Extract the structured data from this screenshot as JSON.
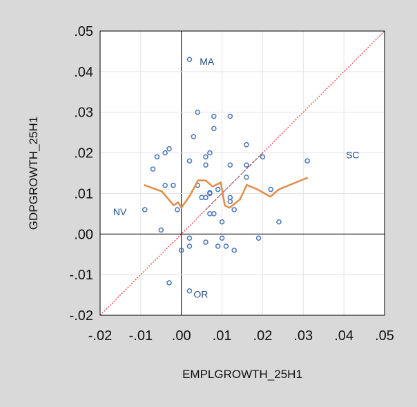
{
  "chart_data": {
    "type": "scatter",
    "title": "",
    "xlabel": "EMPLGROWTH_25H1",
    "ylabel": "GDPGROWTH_25H1",
    "xlim": [
      -0.02,
      0.05
    ],
    "ylim": [
      -0.02,
      0.05
    ],
    "xticks": [
      -0.02,
      -0.01,
      0.0,
      0.01,
      0.02,
      0.03,
      0.04,
      0.05
    ],
    "yticks": [
      -0.02,
      -0.01,
      0.0,
      0.01,
      0.02,
      0.03,
      0.04,
      0.05
    ],
    "xtick_labels": [
      "-.02",
      "-.01",
      ".00",
      ".01",
      ".02",
      ".03",
      ".04",
      ".05"
    ],
    "ytick_labels": [
      "-.02",
      "-.01",
      ".00",
      ".01",
      ".02",
      ".03",
      ".04",
      ".05"
    ],
    "grid": true,
    "colors": {
      "points": "#4f7ac0",
      "fit": "#e0904a",
      "diagonal": "#ff0000",
      "labels": "#1f4e8c"
    },
    "points": [
      [
        0.002,
        0.043
      ],
      [
        0.004,
        0.03
      ],
      [
        0.008,
        0.029
      ],
      [
        0.012,
        0.029
      ],
      [
        0.008,
        0.026
      ],
      [
        0.003,
        0.024
      ],
      [
        0.016,
        0.022
      ],
      [
        -0.003,
        0.021
      ],
      [
        -0.004,
        0.02
      ],
      [
        -0.006,
        0.019
      ],
      [
        0.007,
        0.02
      ],
      [
        0.006,
        0.019
      ],
      [
        0.002,
        0.018
      ],
      [
        0.02,
        0.019
      ],
      [
        0.031,
        0.018
      ],
      [
        -0.007,
        0.016
      ],
      [
        0.006,
        0.017
      ],
      [
        0.012,
        0.017
      ],
      [
        0.016,
        0.017
      ],
      [
        0.016,
        0.014
      ],
      [
        -0.004,
        0.012
      ],
      [
        -0.002,
        0.012
      ],
      [
        0.004,
        0.012
      ],
      [
        0.009,
        0.011
      ],
      [
        0.022,
        0.011
      ],
      [
        0.007,
        0.01
      ],
      [
        0.007,
        0.0102
      ],
      [
        0.012,
        0.009
      ],
      [
        0.005,
        0.009
      ],
      [
        0.006,
        0.009
      ],
      [
        0.012,
        0.008
      ],
      [
        -0.001,
        0.006
      ],
      [
        0.013,
        0.006
      ],
      [
        -0.009,
        0.006
      ],
      [
        0.007,
        0.005
      ],
      [
        0.008,
        0.005
      ],
      [
        0.01,
        0.003
      ],
      [
        0.024,
        0.003
      ],
      [
        -0.005,
        0.001
      ],
      [
        0.002,
        -0.001
      ],
      [
        0.01,
        -0.001
      ],
      [
        0.019,
        -0.001
      ],
      [
        0.006,
        -0.002
      ],
      [
        0.002,
        -0.003
      ],
      [
        0.009,
        -0.003
      ],
      [
        0.011,
        -0.003
      ],
      [
        0.013,
        -0.004
      ],
      [
        0.0,
        -0.004
      ],
      [
        -0.003,
        -0.012
      ],
      [
        0.002,
        -0.014
      ]
    ],
    "fit_line": [
      [
        -0.0092,
        0.0121
      ],
      [
        -0.0048,
        0.0105
      ],
      [
        -0.0019,
        0.0071
      ],
      [
        -0.0008,
        0.0078
      ],
      [
        0.0,
        0.0065
      ],
      [
        0.002,
        0.0093
      ],
      [
        0.0041,
        0.0132
      ],
      [
        0.006,
        0.0132
      ],
      [
        0.0077,
        0.0117
      ],
      [
        0.0097,
        0.0127
      ],
      [
        0.0107,
        0.007
      ],
      [
        0.0119,
        0.0065
      ],
      [
        0.0144,
        0.0085
      ],
      [
        0.0161,
        0.0121
      ],
      [
        0.0187,
        0.011
      ],
      [
        0.0219,
        0.0092
      ],
      [
        0.024,
        0.011
      ],
      [
        0.0311,
        0.0139
      ]
    ],
    "annotations": [
      {
        "text": "MA",
        "x": 0.0045,
        "y": 0.0425
      },
      {
        "text": "OR",
        "x": 0.003,
        "y": -0.0148
      },
      {
        "text": "NV",
        "x": -0.0168,
        "y": 0.0055
      },
      {
        "text": "SC",
        "x": 0.0405,
        "y": 0.0195
      }
    ]
  }
}
